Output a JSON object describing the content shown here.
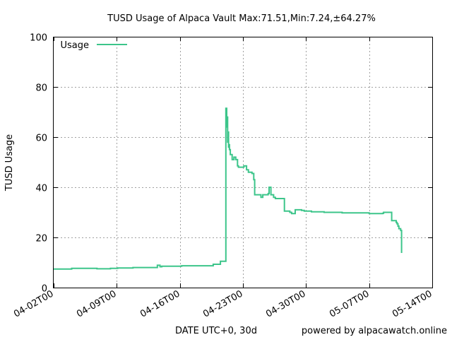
{
  "chart_data": {
    "type": "line",
    "title": "TUSD Usage of Alpaca Vault Max:71.51,Min:7.24,±64.27%",
    "xlabel": "DATE UTC+0, 30d",
    "ylabel": "TUSD Usage",
    "credit": "powered by alpacawatch.online",
    "x_ticks": [
      "04-02T00",
      "04-09T00",
      "04-16T00",
      "04-23T00",
      "04-30T00",
      "05-07T00",
      "05-14T00"
    ],
    "y_ticks": [
      "0",
      "20",
      "40",
      "60",
      "80",
      "100"
    ],
    "ylim": [
      0,
      100
    ],
    "xlim_days": [
      0,
      42
    ],
    "grid": true,
    "legend_position": "top-left",
    "series": [
      {
        "name": "Usage",
        "color": "#3cc58a",
        "x_days": [
          0,
          1.9,
          2.0,
          4.7,
          4.8,
          6.2,
          6.3,
          7.0,
          7.1,
          8.7,
          8.8,
          11.4,
          11.5,
          11.8,
          12.0,
          14.0,
          14.2,
          17.5,
          17.7,
          18.3,
          18.5,
          19.0,
          19.1,
          19.2,
          19.25,
          19.3,
          19.35,
          19.4,
          19.45,
          19.5,
          19.6,
          19.8,
          20.0,
          20.2,
          20.4,
          20.5,
          21.0,
          21.1,
          21.4,
          21.6,
          22.0,
          22.2,
          22.3,
          22.6,
          23.0,
          23.2,
          23.6,
          23.8,
          23.9,
          24.1,
          24.4,
          24.6,
          25.0,
          25.6,
          25.8,
          26.2,
          26.4,
          26.7,
          26.8,
          27.5,
          27.8,
          28.4,
          28.6,
          30.0,
          31.0,
          32.0,
          34.0,
          35.0,
          36.0,
          36.5,
          36.6,
          37.5,
          37.6,
          38.0,
          38.1,
          38.2,
          38.3,
          38.5,
          38.6
        ],
        "values": [
          7.4,
          7.4,
          7.7,
          7.7,
          7.5,
          7.5,
          7.7,
          7.7,
          7.8,
          7.8,
          8.0,
          8.0,
          8.9,
          8.3,
          8.5,
          8.5,
          8.7,
          8.7,
          9.3,
          9.3,
          10.5,
          10.5,
          71.5,
          64.0,
          68.0,
          58.0,
          62.0,
          56.0,
          57.0,
          55.0,
          53.0,
          51.0,
          52.0,
          51.0,
          48.5,
          48.0,
          48.0,
          48.5,
          47.0,
          46.0,
          45.5,
          43.0,
          37.0,
          37.0,
          36.0,
          37.0,
          37.0,
          37.5,
          40.0,
          37.0,
          36.0,
          35.5,
          35.5,
          30.5,
          30.5,
          30.0,
          29.5,
          29.5,
          31.0,
          30.8,
          30.5,
          30.5,
          30.2,
          30.0,
          30.0,
          29.8,
          29.8,
          29.5,
          29.5,
          29.6,
          30.0,
          26.7,
          26.7,
          26.0,
          25.4,
          24.5,
          23.5,
          22.8,
          13.8
        ]
      }
    ]
  }
}
